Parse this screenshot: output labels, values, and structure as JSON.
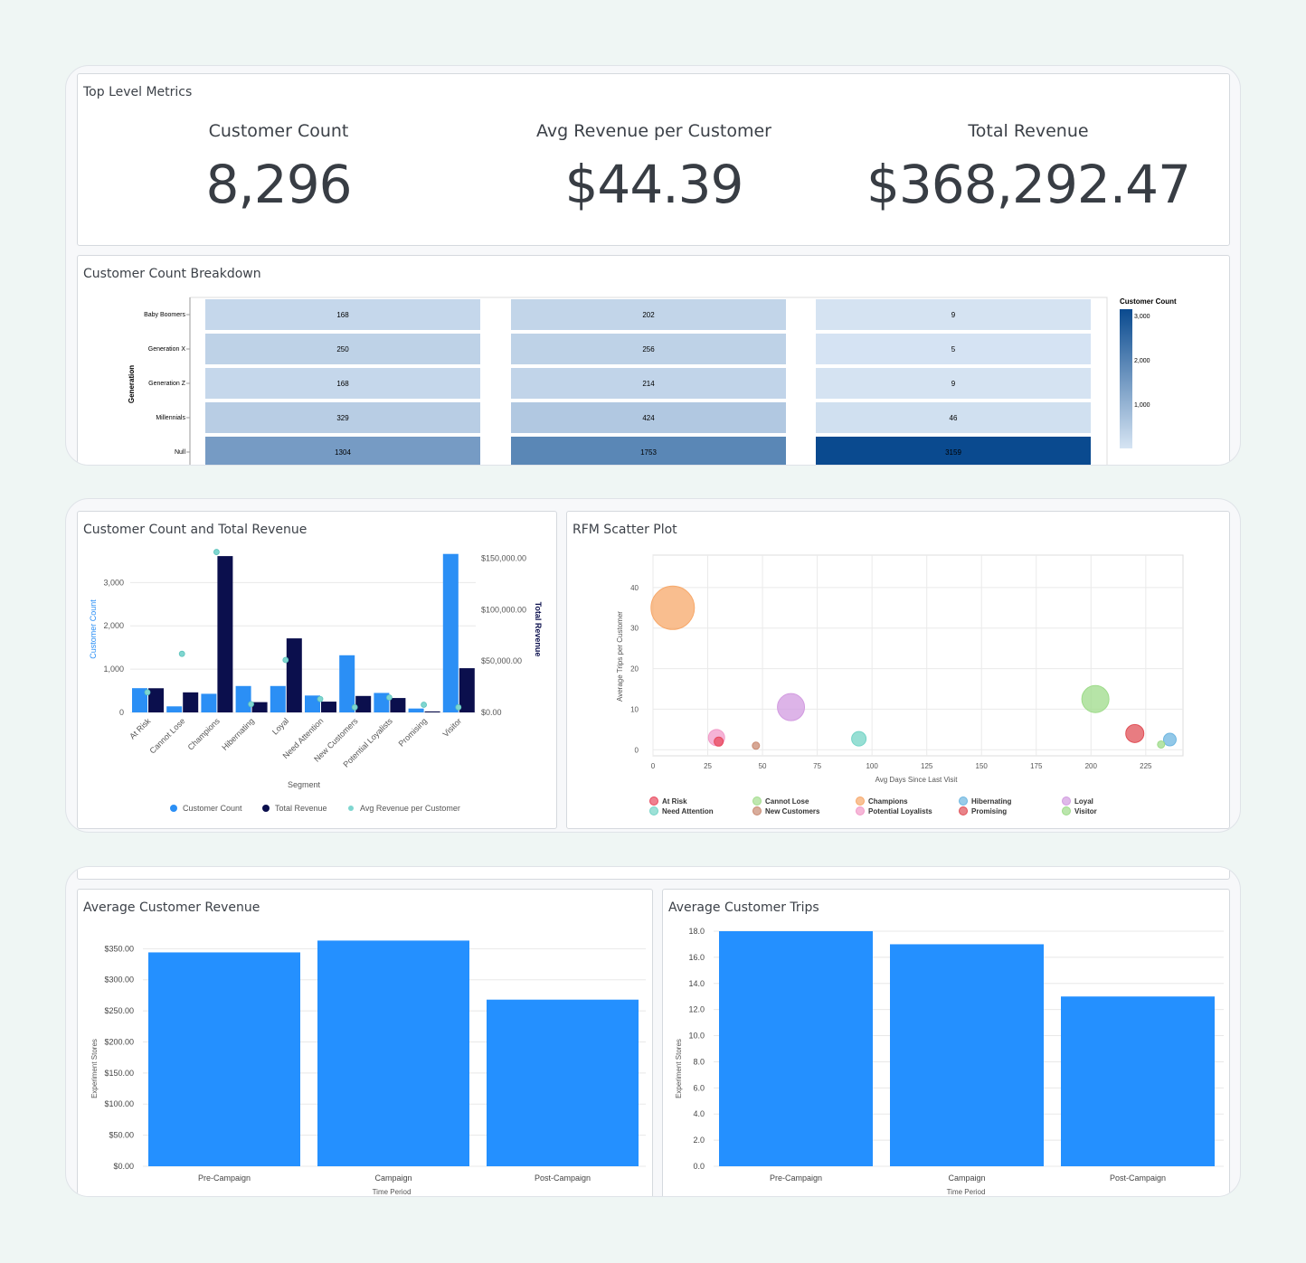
{
  "metrics": {
    "title": "Top Level Metrics",
    "items": [
      {
        "label": "Customer Count",
        "value": "8,296"
      },
      {
        "label": "Avg Revenue per Customer",
        "value": "$44.39"
      },
      {
        "label": "Total Revenue",
        "value": "$368,292.47"
      }
    ]
  },
  "breakdown": {
    "title": "Customer Count Breakdown",
    "chart_data": {
      "type": "heatmap",
      "ylabel": "Generation",
      "rows": [
        "Baby Boomers",
        "Generation X",
        "Generation Z",
        "Millennials",
        "Null"
      ],
      "values": [
        [
          168,
          202,
          9
        ],
        [
          250,
          256,
          5
        ],
        [
          168,
          214,
          9
        ],
        [
          329,
          424,
          46
        ],
        [
          1304,
          1753,
          3159
        ]
      ],
      "legend_title": "Customer Count",
      "legend_ticks": [
        "3,000",
        "2,000",
        "1,000"
      ],
      "colors": {
        "low": "#d6e4f3",
        "high": "#0a4a8f"
      }
    }
  },
  "combo": {
    "title": "Customer Count and Total Revenue",
    "chart_data": {
      "type": "bar",
      "categories": [
        "At Risk",
        "Cannot Lose",
        "Champions",
        "Hibernating",
        "Loyal",
        "Need Attention",
        "New Customers",
        "Potential Loyalists",
        "Promising",
        "Visitor"
      ],
      "series": [
        {
          "name": "Customer Count",
          "axis": "left",
          "color": "#2b8ff5",
          "values": [
            560,
            140,
            430,
            610,
            610,
            390,
            1320,
            450,
            90,
            3660
          ]
        },
        {
          "name": "Total Revenue",
          "axis": "right",
          "color": "#0b0f4d",
          "values": [
            23500,
            19500,
            152000,
            10000,
            72000,
            10500,
            16000,
            14000,
            1000,
            43000
          ]
        },
        {
          "name": "Avg Revenue per Customer",
          "axis": "right",
          "color": "#7fd6d0",
          "values": [
            19500,
            57000,
            156000,
            8000,
            51000,
            13000,
            5000,
            14500,
            7500,
            5000
          ]
        }
      ],
      "xlabel": "Segment",
      "ylabel": "Customer Count",
      "y2label": "Total Revenue",
      "ylim": [
        0,
        3800
      ],
      "y2lim": [
        0,
        160000
      ],
      "yticks": [
        "0",
        "1,000",
        "2,000",
        "3,000"
      ],
      "y2ticks": [
        "$0.00",
        "$50,000.00",
        "$100,000.00",
        "$150,000.00"
      ]
    }
  },
  "scatter": {
    "title": "RFM Scatter Plot",
    "chart_data": {
      "type": "scatter",
      "xlabel": "Avg Days Since Last Visit",
      "ylabel": "Average Trips per Customer",
      "xlim": [
        0,
        242
      ],
      "ylim": [
        -1.5,
        48
      ],
      "xticks": [
        "0",
        "25",
        "50",
        "75",
        "100",
        "125",
        "150",
        "175",
        "200",
        "225"
      ],
      "yticks": [
        "0",
        "10",
        "20",
        "30",
        "40"
      ],
      "points": [
        {
          "name": "Champions",
          "x": 9,
          "y": 35,
          "r": 24,
          "color": "#f7a86a"
        },
        {
          "name": "Potential Loyalists",
          "x": 29,
          "y": 3,
          "r": 9,
          "color": "#f29ac8"
        },
        {
          "name": "At Risk",
          "x": 30,
          "y": 2,
          "r": 5,
          "color": "#e84a5f"
        },
        {
          "name": "New Customers",
          "x": 47,
          "y": 1,
          "r": 4,
          "color": "#c98a72"
        },
        {
          "name": "Loyal",
          "x": 63,
          "y": 10.5,
          "r": 15,
          "color": "#d29be0"
        },
        {
          "name": "Need Attention",
          "x": 94,
          "y": 2.7,
          "r": 8,
          "color": "#74d4c6"
        },
        {
          "name": "Visitor",
          "x": 202,
          "y": 12.5,
          "r": 15,
          "color": "#9edb8a"
        },
        {
          "name": "Promising",
          "x": 220,
          "y": 4,
          "r": 10,
          "color": "#e05057"
        },
        {
          "name": "Hibernating",
          "x": 236,
          "y": 2.5,
          "r": 7,
          "color": "#6eb6e0"
        },
        {
          "name": "Cannot Lose",
          "x": 232,
          "y": 1.3,
          "r": 4,
          "color": "#9edb8a"
        }
      ],
      "legend": [
        {
          "name": "At Risk",
          "color": "#e84a5f"
        },
        {
          "name": "Cannot Lose",
          "color": "#a4dd8e"
        },
        {
          "name": "Champions",
          "color": "#f7a86a"
        },
        {
          "name": "Hibernating",
          "color": "#6eb6e0"
        },
        {
          "name": "Loyal",
          "color": "#d29be0"
        },
        {
          "name": "Need Attention",
          "color": "#74d4c6"
        },
        {
          "name": "New Customers",
          "color": "#c98a72"
        },
        {
          "name": "Potential Loyalists",
          "color": "#f29ac8"
        },
        {
          "name": "Promising",
          "color": "#e05057"
        },
        {
          "name": "Visitor",
          "color": "#9edb8a"
        }
      ]
    }
  },
  "avg_revenue": {
    "title": "Average Customer Revenue",
    "chart_data": {
      "type": "bar",
      "categories": [
        "Pre-Campaign",
        "Campaign",
        "Post-Campaign"
      ],
      "values": [
        344,
        363,
        268
      ],
      "ylim": [
        0,
        365
      ],
      "yticks": [
        "$0.00",
        "$50.00",
        "$100.00",
        "$150.00",
        "$200.00",
        "$250.00",
        "$300.00",
        "$350.00"
      ],
      "xlabel": "Time Period",
      "ylabel": "Experiment Stores",
      "color": "#2490ff"
    }
  },
  "avg_trips": {
    "title": "Average Customer Trips",
    "chart_data": {
      "type": "bar",
      "categories": [
        "Pre-Campaign",
        "Campaign",
        "Post-Campaign"
      ],
      "values": [
        18,
        17,
        13
      ],
      "ylim": [
        0,
        18
      ],
      "yticks": [
        "0.0",
        "2.0",
        "4.0",
        "6.0",
        "8.0",
        "10.0",
        "12.0",
        "14.0",
        "16.0",
        "18.0"
      ],
      "xlabel": "Time Period",
      "ylabel": "Experiment Stores",
      "color": "#2490ff"
    }
  }
}
